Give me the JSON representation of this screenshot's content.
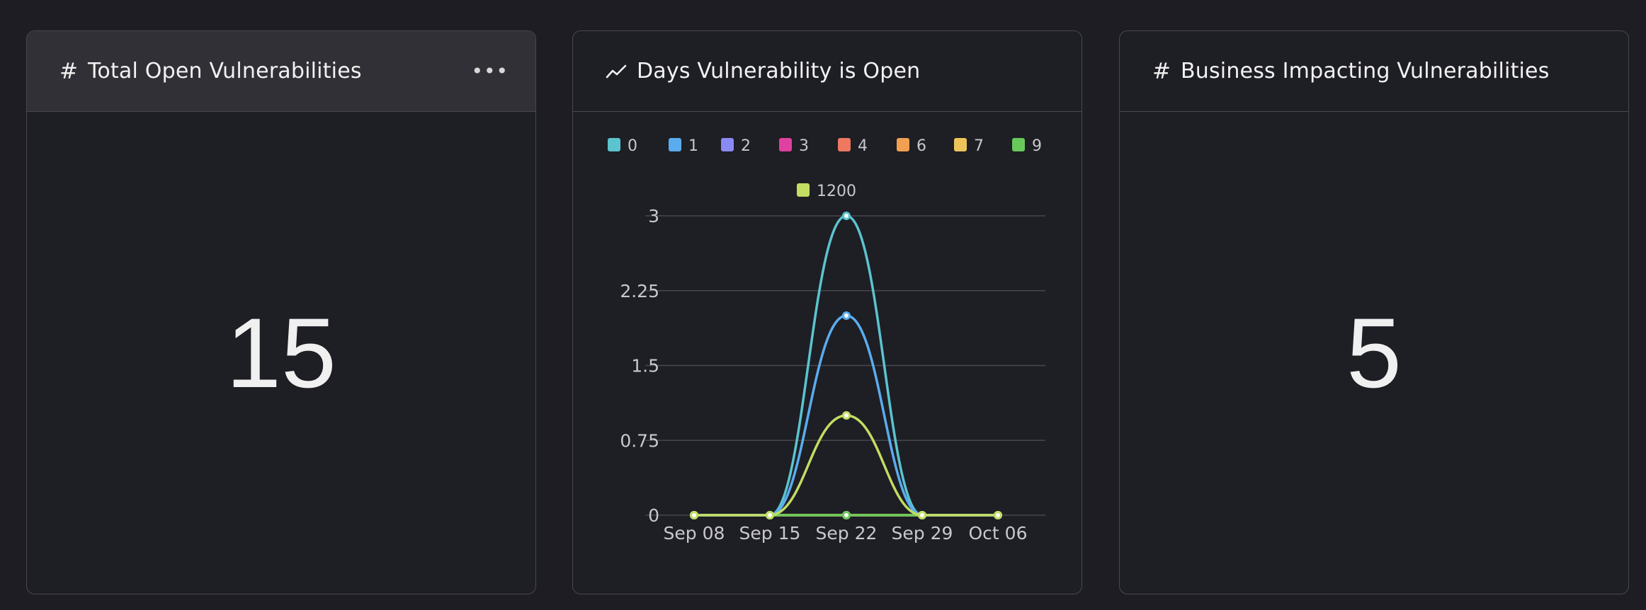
{
  "cards": [
    {
      "title": "Total Open Vulnerabilities",
      "icon": "hash-icon",
      "value": "15",
      "menu_label": "•••"
    },
    {
      "title": "Days Vulnerability is Open",
      "icon": "line-chart-icon"
    },
    {
      "title": "Business Impacting Vulnerabilities",
      "icon": "hash-icon",
      "value": "5"
    }
  ],
  "chart_data": {
    "type": "line",
    "x": [
      "Sep 08",
      "Sep 15",
      "Sep 22",
      "Sep 29",
      "Oct 06"
    ],
    "yticks": [
      "0",
      "0.75",
      "1.5",
      "2.25",
      "3"
    ],
    "ylim": [
      0,
      3
    ],
    "grid": true,
    "legend_position": "top",
    "series": [
      {
        "name": "0",
        "color": "#5bc4cf",
        "values": [
          0,
          0,
          3,
          0,
          0
        ]
      },
      {
        "name": "1",
        "color": "#5aacee",
        "values": [
          0,
          0,
          2,
          0,
          0
        ]
      },
      {
        "name": "2",
        "color": "#8a8af5",
        "values": [
          0,
          0,
          0,
          0,
          0
        ]
      },
      {
        "name": "3",
        "color": "#e040a0",
        "values": [
          0,
          0,
          0,
          0,
          0
        ]
      },
      {
        "name": "4",
        "color": "#ee7860",
        "values": [
          0,
          0,
          0,
          0,
          0
        ]
      },
      {
        "name": "6",
        "color": "#f0a050",
        "values": [
          0,
          0,
          0,
          0,
          0
        ]
      },
      {
        "name": "7",
        "color": "#eec45a",
        "values": [
          0,
          0,
          0,
          0,
          0
        ]
      },
      {
        "name": "9",
        "color": "#68c85a",
        "values": [
          0,
          0,
          0,
          0,
          0
        ]
      },
      {
        "name": "1200",
        "color": "#c2dd62",
        "values": [
          0,
          0,
          1,
          0,
          0
        ]
      }
    ]
  }
}
